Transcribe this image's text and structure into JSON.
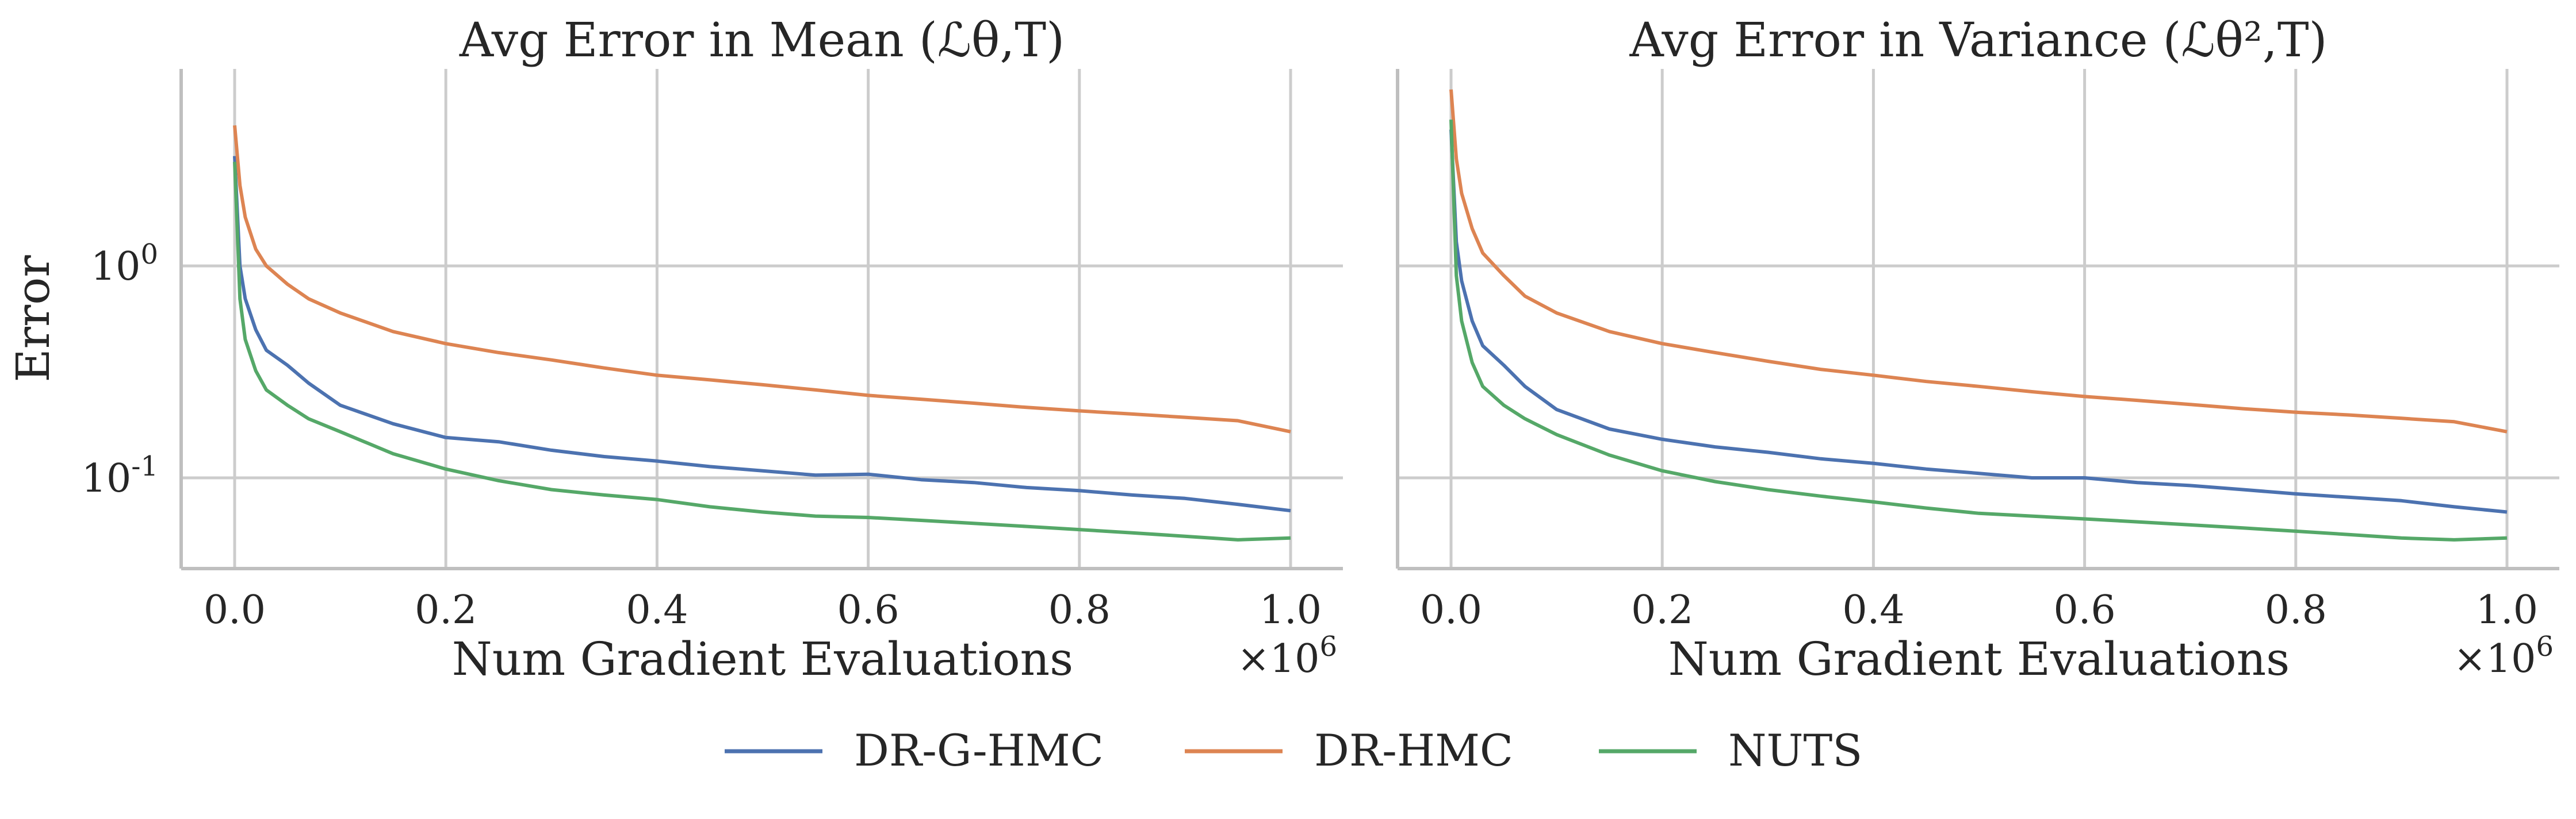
{
  "chart_data": [
    {
      "type": "line",
      "title": "Avg Error in Mean (ℒθ,T)",
      "xlabel": "Num Gradient Evaluations",
      "ylabel": "Error",
      "x_multiplier": "×10^6",
      "xlim": [
        0,
        1.0
      ],
      "xticks": [
        "0.0",
        "0.2",
        "0.4",
        "0.6",
        "0.8",
        "1.0"
      ],
      "yscale": "log",
      "yticks": [
        "10^0",
        "10^-1"
      ],
      "ylim": [
        0.04,
        8
      ],
      "grid": true,
      "x": [
        0.0,
        0.005,
        0.01,
        0.02,
        0.03,
        0.05,
        0.07,
        0.1,
        0.15,
        0.2,
        0.25,
        0.3,
        0.35,
        0.4,
        0.45,
        0.5,
        0.55,
        0.6,
        0.65,
        0.7,
        0.75,
        0.8,
        0.85,
        0.9,
        0.95,
        1.0
      ],
      "series": [
        {
          "name": "DR-G-HMC",
          "color": "#4c72b0",
          "values": [
            3.3,
            1.0,
            0.7,
            0.5,
            0.4,
            0.34,
            0.28,
            0.22,
            0.18,
            0.155,
            0.148,
            0.135,
            0.126,
            0.12,
            0.113,
            0.108,
            0.103,
            0.104,
            0.098,
            0.095,
            0.09,
            0.087,
            0.083,
            0.08,
            0.075,
            0.07
          ]
        },
        {
          "name": "DR-HMC",
          "color": "#dd8452",
          "values": [
            4.6,
            2.4,
            1.7,
            1.2,
            1.0,
            0.82,
            0.7,
            0.6,
            0.49,
            0.43,
            0.39,
            0.36,
            0.33,
            0.305,
            0.29,
            0.275,
            0.26,
            0.245,
            0.235,
            0.225,
            0.215,
            0.207,
            0.2,
            0.193,
            0.186,
            0.165
          ]
        },
        {
          "name": "NUTS",
          "color": "#55a868",
          "values": [
            3.1,
            0.7,
            0.45,
            0.32,
            0.26,
            0.22,
            0.19,
            0.165,
            0.13,
            0.11,
            0.097,
            0.088,
            0.083,
            0.079,
            0.073,
            0.069,
            0.066,
            0.065,
            0.063,
            0.061,
            0.059,
            0.057,
            0.055,
            0.053,
            0.051,
            0.052
          ]
        }
      ]
    },
    {
      "type": "line",
      "title": "Avg Error in Variance (ℒθ²,T)",
      "xlabel": "Num Gradient Evaluations",
      "ylabel": "",
      "x_multiplier": "×10^6",
      "xlim": [
        0,
        1.0
      ],
      "xticks": [
        "0.0",
        "0.2",
        "0.4",
        "0.6",
        "0.8",
        "1.0"
      ],
      "yscale": "log",
      "yticks": [],
      "ylim": [
        0.04,
        8
      ],
      "grid": true,
      "x": [
        0.0,
        0.005,
        0.01,
        0.02,
        0.03,
        0.05,
        0.07,
        0.1,
        0.15,
        0.2,
        0.25,
        0.3,
        0.35,
        0.4,
        0.45,
        0.5,
        0.55,
        0.6,
        0.65,
        0.7,
        0.75,
        0.8,
        0.85,
        0.9,
        0.95,
        1.0
      ],
      "series": [
        {
          "name": "DR-G-HMC",
          "color": "#4c72b0",
          "values": [
            4.4,
            1.3,
            0.85,
            0.55,
            0.42,
            0.34,
            0.27,
            0.21,
            0.17,
            0.152,
            0.14,
            0.132,
            0.123,
            0.117,
            0.11,
            0.105,
            0.1,
            0.1,
            0.095,
            0.092,
            0.088,
            0.084,
            0.081,
            0.078,
            0.073,
            0.069
          ]
        },
        {
          "name": "DR-HMC",
          "color": "#dd8452",
          "values": [
            6.8,
            3.2,
            2.2,
            1.5,
            1.15,
            0.9,
            0.72,
            0.6,
            0.49,
            0.43,
            0.39,
            0.355,
            0.325,
            0.305,
            0.285,
            0.27,
            0.255,
            0.242,
            0.232,
            0.222,
            0.212,
            0.204,
            0.198,
            0.191,
            0.184,
            0.165
          ]
        },
        {
          "name": "NUTS",
          "color": "#55a868",
          "values": [
            4.9,
            0.9,
            0.55,
            0.35,
            0.27,
            0.22,
            0.19,
            0.16,
            0.128,
            0.108,
            0.096,
            0.088,
            0.082,
            0.077,
            0.072,
            0.068,
            0.066,
            0.064,
            0.062,
            0.06,
            0.058,
            0.056,
            0.054,
            0.052,
            0.051,
            0.052
          ]
        }
      ]
    }
  ],
  "legend": {
    "placement": "bottom-center",
    "items": [
      {
        "name": "DR-G-HMC",
        "color": "#4c72b0"
      },
      {
        "name": "DR-HMC",
        "color": "#dd8452"
      },
      {
        "name": "NUTS",
        "color": "#55a868"
      }
    ]
  }
}
